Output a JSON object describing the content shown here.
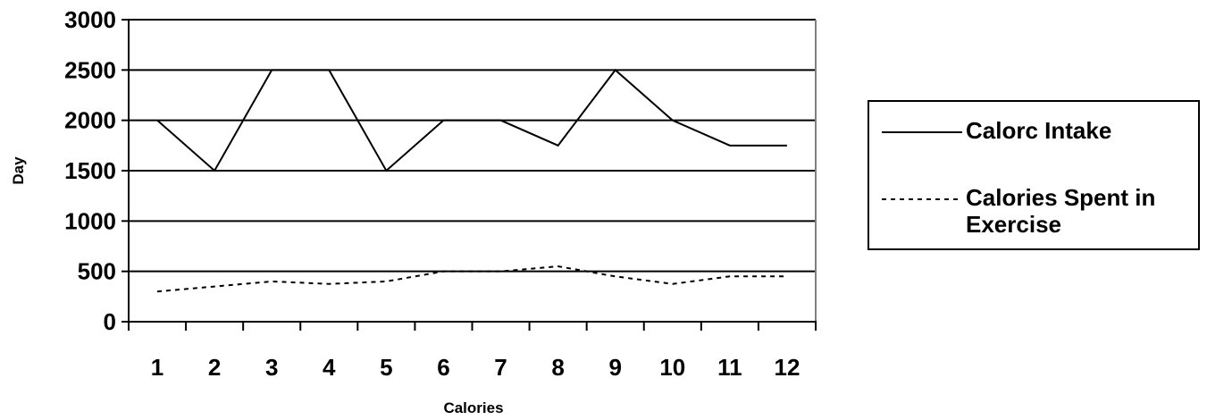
{
  "chart_data": {
    "type": "line",
    "title": "",
    "xlabel": "Calories",
    "ylabel": "Day",
    "categories": [
      "1",
      "2",
      "3",
      "4",
      "5",
      "6",
      "7",
      "8",
      "9",
      "10",
      "11",
      "12"
    ],
    "ylim": [
      0,
      3000
    ],
    "yticks": [
      0,
      500,
      1000,
      1500,
      2000,
      2500,
      3000
    ],
    "grid": "horizontal",
    "legend_position": "right",
    "series": [
      {
        "name": "Calorc Intake",
        "style": "solid",
        "color": "#000000",
        "values": [
          2000,
          1500,
          2500,
          2500,
          1500,
          2000,
          2000,
          1750,
          2500,
          2000,
          1750,
          1750
        ]
      },
      {
        "name": "Calories Spent in Exercise",
        "style": "dashed",
        "color": "#000000",
        "values": [
          300,
          350,
          400,
          375,
          400,
          500,
          500,
          550,
          450,
          375,
          450,
          450
        ]
      }
    ]
  }
}
